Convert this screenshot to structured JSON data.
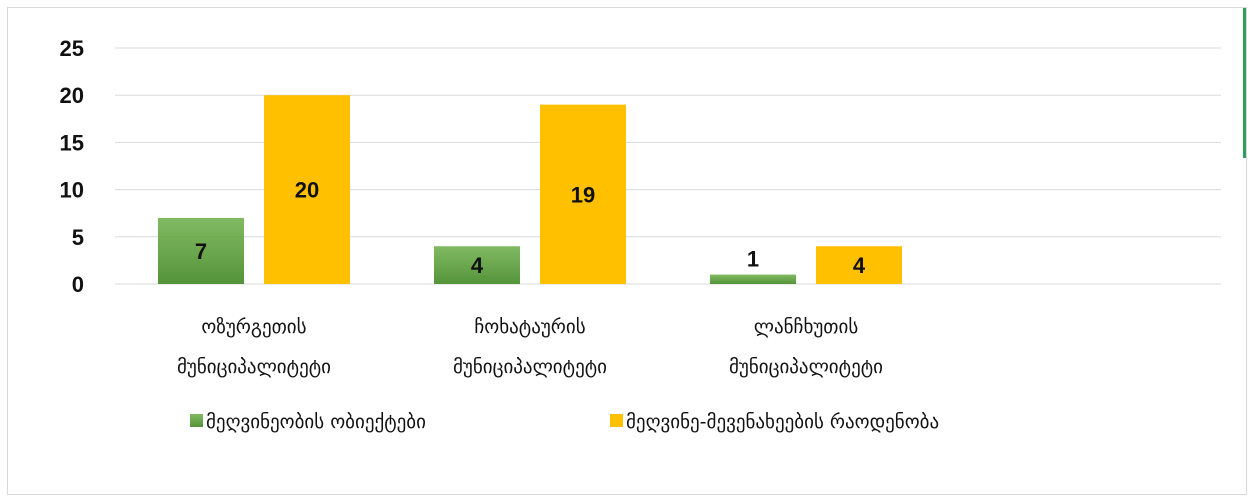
{
  "chart_data": {
    "type": "bar",
    "categories": [
      [
        "ოზურგეთის",
        "მუნიციპალიტეტი"
      ],
      [
        "ჩოხატაურის",
        "მუნიციპალიტეტი"
      ],
      [
        "ლანჩხუთის",
        "მუნიციპალიტეტი"
      ]
    ],
    "series": [
      {
        "name": "მეღვინეობის ობიექტები",
        "values": [
          7,
          4,
          1
        ],
        "color": "#6aad45"
      },
      {
        "name": "მეღვინე-მევენახეების რაოდენობა",
        "values": [
          20,
          19,
          4
        ],
        "color": "#ffc000"
      }
    ],
    "ylim": [
      0,
      25
    ],
    "yticks": [
      0,
      5,
      10,
      15,
      20,
      25
    ],
    "grid": true,
    "legend_position": "bottom"
  }
}
